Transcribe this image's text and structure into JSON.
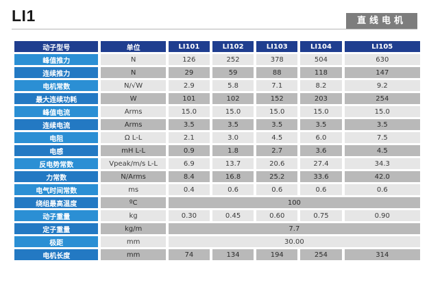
{
  "page": {
    "title": "LI1",
    "badge": "直线电机"
  },
  "table": {
    "headers": [
      "动子型号",
      "单位",
      "LI101",
      "LI102",
      "LI103",
      "LI104",
      "LI105"
    ],
    "rows": [
      {
        "label": "峰值推力",
        "unit": "N",
        "values": [
          "126",
          "252",
          "378",
          "504",
          "630"
        ]
      },
      {
        "label": "连续推力",
        "unit": "N",
        "values": [
          "29",
          "59",
          "88",
          "118",
          "147"
        ]
      },
      {
        "label": "电机常数",
        "unit": "N/√W",
        "values": [
          "2.9",
          "5.8",
          "7.1",
          "8.2",
          "9.2"
        ]
      },
      {
        "label": "最大连续功耗",
        "unit": "W",
        "values": [
          "101",
          "102",
          "152",
          "203",
          "254"
        ]
      },
      {
        "label": "峰值电流",
        "unit": "Arms",
        "values": [
          "15.0",
          "15.0",
          "15.0",
          "15.0",
          "15.0"
        ]
      },
      {
        "label": "连续电流",
        "unit": "Arms",
        "values": [
          "3.5",
          "3.5",
          "3.5",
          "3.5",
          "3.5"
        ]
      },
      {
        "label": "电阻",
        "unit": "Ω L-L",
        "values": [
          "2.1",
          "3.0",
          "4.5",
          "6.0",
          "7.5"
        ]
      },
      {
        "label": "电感",
        "unit": "mH L-L",
        "values": [
          "0.9",
          "1.8",
          "2.7",
          "3.6",
          "4.5"
        ]
      },
      {
        "label": "反电势常数",
        "unit": "Vpeak/m/s L-L",
        "values": [
          "6.9",
          "13.7",
          "20.6",
          "27.4",
          "34.3"
        ]
      },
      {
        "label": "力常数",
        "unit": "N/Arms",
        "values": [
          "8.4",
          "16.8",
          "25.2",
          "33.6",
          "42.0"
        ]
      },
      {
        "label": "电气时间常数",
        "unit": "ms",
        "values": [
          "0.4",
          "0.6",
          "0.6",
          "0.6",
          "0.6"
        ]
      },
      {
        "label": "绕组最高温度",
        "unit": "ºC",
        "merged": "100"
      },
      {
        "label": "动子重量",
        "unit": "kg",
        "values": [
          "0.30",
          "0.45",
          "0.60",
          "0.75",
          "0.90"
        ]
      },
      {
        "label": "定子重量",
        "unit": "kg/m",
        "merged": "7.7"
      },
      {
        "label": "极距",
        "unit": "mm",
        "merged": "30.00"
      },
      {
        "label": "电机长度",
        "unit": "mm",
        "values": [
          "74",
          "134",
          "194",
          "254",
          "314"
        ]
      }
    ]
  }
}
